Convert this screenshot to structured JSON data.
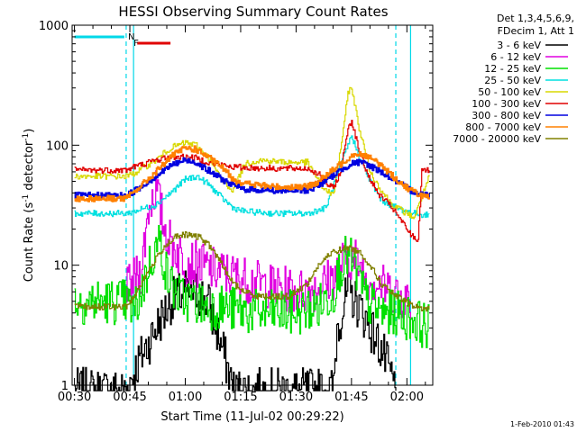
{
  "chart_data": {
    "type": "line",
    "title": "HESSI Observing Summary Count Rates",
    "xlabel": "Start Time (11-Jul-02 00:29:22)",
    "ylabel_prefix": "Count Rate (s",
    "ylabel_mid": " detector",
    "ylabel_suffix": ")",
    "ylabel_exp": "-1",
    "footer": "1-Feb-2010 01:43",
    "y_scale": "log",
    "xlim": [
      29.37,
      127
    ],
    "ylim": [
      1,
      1000
    ],
    "x_ticks": [
      {
        "v": 30,
        "label": "00:30"
      },
      {
        "v": 45,
        "label": "00:45"
      },
      {
        "v": 60,
        "label": "01:00"
      },
      {
        "v": 75,
        "label": "01:15"
      },
      {
        "v": 90,
        "label": "01:30"
      },
      {
        "v": 105,
        "label": "01:45"
      },
      {
        "v": 120,
        "label": "02:00"
      }
    ],
    "y_ticks": [
      {
        "v": 1,
        "label": "1"
      },
      {
        "v": 10,
        "label": "10"
      },
      {
        "v": 100,
        "label": "100"
      },
      {
        "v": 1000,
        "label": "1000"
      }
    ],
    "legend_header": [
      "Det 1,3,4,5,6,9,",
      "FDecim 1, Att 1"
    ],
    "legend_position": "right, outside plot",
    "night_times": [
      46,
      121
    ],
    "day_times": [
      44,
      117
    ],
    "flag_N": {
      "label": "N",
      "color": "#00d8e8",
      "x": [
        30,
        43.5
      ],
      "at": 44.5
    },
    "flag_F": {
      "label": "F",
      "color": "#e00000",
      "x": [
        47,
        56
      ],
      "at": 46
    },
    "series": [
      {
        "name": "3 - 6 keV",
        "color": "#000000",
        "points": [
          [
            30,
            0.9
          ],
          [
            44,
            0.9
          ],
          [
            47,
            1.5
          ],
          [
            52,
            3
          ],
          [
            56,
            5
          ],
          [
            60,
            6
          ],
          [
            63,
            6
          ],
          [
            66,
            5
          ],
          [
            70,
            2
          ],
          [
            73,
            0.9
          ],
          [
            100,
            0.9
          ],
          [
            101,
            3
          ],
          [
            104,
            6
          ],
          [
            107,
            4.5
          ],
          [
            110,
            3
          ],
          [
            113,
            2
          ],
          [
            117,
            0.9
          ]
        ]
      },
      {
        "name": "6 - 12 keV",
        "color": "#e000e0",
        "points": [
          [
            44,
            6
          ],
          [
            48,
            9
          ],
          [
            50,
            30
          ],
          [
            52,
            45
          ],
          [
            54,
            22
          ],
          [
            56,
            15
          ],
          [
            60,
            11
          ],
          [
            64,
            10
          ],
          [
            68,
            9
          ],
          [
            74,
            8
          ],
          [
            80,
            7
          ],
          [
            90,
            6
          ],
          [
            96,
            6.5
          ],
          [
            100,
            8
          ],
          [
            103,
            11
          ],
          [
            104,
            12
          ],
          [
            106,
            11
          ],
          [
            109,
            8
          ],
          [
            112,
            7
          ],
          [
            116,
            6
          ],
          [
            121,
            5
          ]
        ]
      },
      {
        "name": "12 - 25 keV",
        "color": "#00e000",
        "points": [
          [
            30,
            5
          ],
          [
            44,
            5
          ],
          [
            46,
            4
          ],
          [
            48,
            6
          ],
          [
            51,
            12
          ],
          [
            53,
            16
          ],
          [
            55,
            8
          ],
          [
            58,
            5.5
          ],
          [
            62,
            5
          ],
          [
            66,
            4.5
          ],
          [
            70,
            4.5
          ],
          [
            74,
            4.2
          ],
          [
            80,
            4
          ],
          [
            90,
            4
          ],
          [
            96,
            4.5
          ],
          [
            100,
            6
          ],
          [
            102,
            10
          ],
          [
            104,
            12
          ],
          [
            106,
            9
          ],
          [
            109,
            5
          ],
          [
            113,
            4
          ],
          [
            117,
            4
          ],
          [
            122,
            3.5
          ],
          [
            126,
            3
          ]
        ]
      },
      {
        "name": "25 - 50 keV",
        "color": "#00e0e0",
        "points": [
          [
            30,
            27
          ],
          [
            44,
            27
          ],
          [
            46,
            28
          ],
          [
            52,
            32
          ],
          [
            56,
            40
          ],
          [
            60,
            52
          ],
          [
            63,
            55
          ],
          [
            66,
            48
          ],
          [
            70,
            36
          ],
          [
            73,
            30
          ],
          [
            76,
            28
          ],
          [
            84,
            27
          ],
          [
            93,
            27
          ],
          [
            98,
            30
          ],
          [
            101,
            55
          ],
          [
            104,
            100
          ],
          [
            105,
            120
          ],
          [
            107,
            80
          ],
          [
            110,
            50
          ],
          [
            113,
            35
          ],
          [
            117,
            30
          ],
          [
            122,
            27
          ],
          [
            126,
            26
          ]
        ]
      },
      {
        "name": "50 - 100 keV",
        "color": "#d8d800",
        "points": [
          [
            30,
            55
          ],
          [
            44,
            55
          ],
          [
            46,
            58
          ],
          [
            52,
            75
          ],
          [
            56,
            95
          ],
          [
            60,
            105
          ],
          [
            63,
            100
          ],
          [
            66,
            80
          ],
          [
            70,
            50
          ],
          [
            73,
            42
          ],
          [
            76,
            70
          ],
          [
            80,
            75
          ],
          [
            88,
            72
          ],
          [
            93,
            72
          ],
          [
            97,
            45
          ],
          [
            100,
            38
          ],
          [
            103,
            150
          ],
          [
            104,
            280
          ],
          [
            105,
            300
          ],
          [
            107,
            140
          ],
          [
            110,
            60
          ],
          [
            113,
            42
          ],
          [
            116,
            32
          ],
          [
            119,
            28
          ],
          [
            122,
            25
          ],
          [
            126,
            55
          ]
        ]
      },
      {
        "name": "100 - 300 keV",
        "color": "#e00000",
        "points": [
          [
            30,
            62
          ],
          [
            44,
            62
          ],
          [
            46,
            66
          ],
          [
            52,
            75
          ],
          [
            56,
            80
          ],
          [
            60,
            80
          ],
          [
            63,
            78
          ],
          [
            66,
            72
          ],
          [
            70,
            68
          ],
          [
            73,
            66
          ],
          [
            76,
            65
          ],
          [
            84,
            64
          ],
          [
            93,
            64
          ],
          [
            96,
            58
          ],
          [
            98,
            48
          ],
          [
            100,
            44
          ],
          [
            102,
            60
          ],
          [
            104,
            140
          ],
          [
            105,
            160
          ],
          [
            107,
            90
          ],
          [
            109,
            60
          ],
          [
            112,
            40
          ],
          [
            116,
            30
          ],
          [
            119,
            22
          ],
          [
            121,
            18
          ],
          [
            123,
            16
          ],
          [
            124,
            65
          ],
          [
            126,
            60
          ]
        ]
      },
      {
        "name": "300 - 800 keV",
        "color": "#0000e0",
        "points": [
          [
            30,
            38
          ],
          [
            44,
            38
          ],
          [
            48,
            45
          ],
          [
            52,
            55
          ],
          [
            56,
            68
          ],
          [
            60,
            75
          ],
          [
            63,
            72
          ],
          [
            66,
            62
          ],
          [
            70,
            52
          ],
          [
            73,
            46
          ],
          [
            76,
            43
          ],
          [
            84,
            42
          ],
          [
            93,
            42
          ],
          [
            96,
            46
          ],
          [
            100,
            56
          ],
          [
            104,
            68
          ],
          [
            106,
            72
          ],
          [
            109,
            70
          ],
          [
            113,
            60
          ],
          [
            117,
            50
          ],
          [
            121,
            42
          ],
          [
            126,
            38
          ]
        ]
      },
      {
        "name": "800 - 7000 keV",
        "color": "#ff8000",
        "points": [
          [
            30,
            36
          ],
          [
            44,
            36
          ],
          [
            48,
            46
          ],
          [
            52,
            60
          ],
          [
            56,
            80
          ],
          [
            60,
            95
          ],
          [
            63,
            92
          ],
          [
            66,
            80
          ],
          [
            70,
            65
          ],
          [
            73,
            52
          ],
          [
            76,
            48
          ],
          [
            84,
            45
          ],
          [
            93,
            45
          ],
          [
            96,
            50
          ],
          [
            100,
            62
          ],
          [
            104,
            78
          ],
          [
            106,
            86
          ],
          [
            109,
            82
          ],
          [
            113,
            68
          ],
          [
            117,
            52
          ],
          [
            121,
            42
          ],
          [
            126,
            36
          ]
        ]
      },
      {
        "name": "7000 - 20000 keV",
        "color": "#808000",
        "points": [
          [
            30,
            4.5
          ],
          [
            44,
            4.5
          ],
          [
            46,
            5.5
          ],
          [
            50,
            9
          ],
          [
            54,
            14
          ],
          [
            57,
            17
          ],
          [
            60,
            18
          ],
          [
            64,
            17
          ],
          [
            67,
            14
          ],
          [
            70,
            10
          ],
          [
            73,
            7
          ],
          [
            76,
            6
          ],
          [
            80,
            5.5
          ],
          [
            88,
            5.5
          ],
          [
            93,
            7
          ],
          [
            96,
            10
          ],
          [
            100,
            13
          ],
          [
            104,
            14
          ],
          [
            107,
            13
          ],
          [
            110,
            10
          ],
          [
            113,
            7
          ],
          [
            117,
            5.5
          ],
          [
            122,
            4.5
          ],
          [
            126,
            4.3
          ]
        ]
      }
    ]
  }
}
